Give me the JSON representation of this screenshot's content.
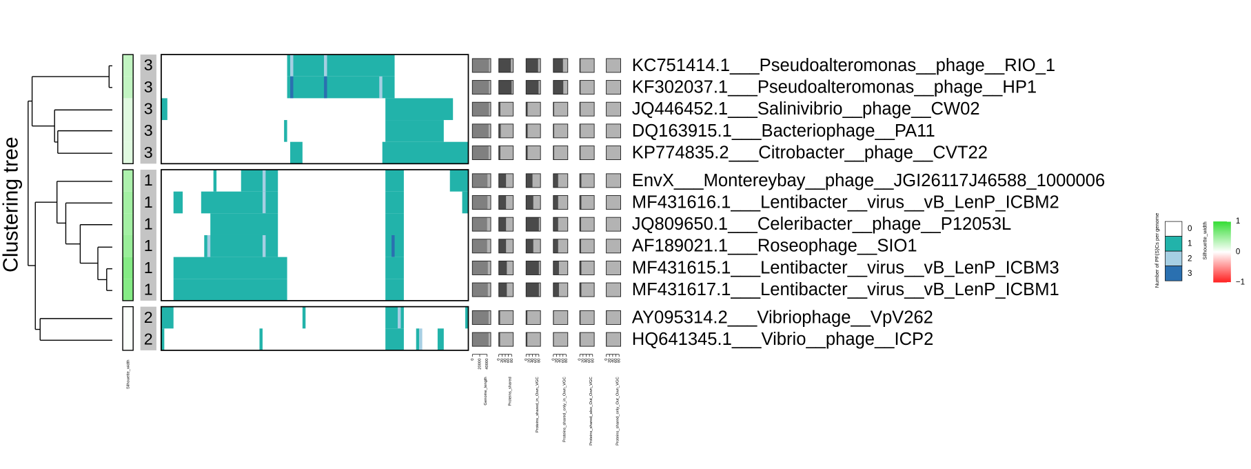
{
  "chart_data": {
    "type": "heatmap",
    "y_title": "Clustering tree",
    "rows": [
      "KC751414.1___Pseudoalteromonas__phage__RIO_1",
      "KF302037.1___Pseudoalteromonas__phage__HP1",
      "JQ446452.1___Salinivibrio__phage__CW02",
      "DQ163915.1___Bacteriophage__PA11",
      "KP774835.2___Citrobacter__phage__CVT22",
      "EnvX___Montereybay__phage__JGI26117J46588_1000006",
      "MF431616.1___Lentibacter__virus__vB_LenP_ICBM2",
      "JQ809650.1___Celeribacter__phage__P12053L",
      "AF189021.1___Roseophage__SIO1",
      "MF431615.1___Lentibacter__virus__vB_LenP_ICBM3",
      "MF431617.1___Lentibacter__virus__vB_LenP_ICBM1",
      "AY095314.2___Vibriophage__VpV262",
      "HQ641345.1___Vibrio__phage__ICP2"
    ],
    "clusters": [
      3,
      3,
      3,
      3,
      3,
      1,
      1,
      1,
      1,
      1,
      1,
      2,
      2
    ],
    "silhouette": [
      0.3,
      0.3,
      0.15,
      0.15,
      0.15,
      0.4,
      0.45,
      0.45,
      0.5,
      0.6,
      0.6,
      0.02,
      0.02
    ],
    "silhouette_legend": {
      "title": "Silhouette_width",
      "ylim": [
        -1,
        1
      ],
      "ticks": [
        1,
        0,
        {
          "value": -1,
          "label": "−1"
        }
      ]
    },
    "heatmap": {
      "xlim": [
        0,
        100
      ],
      "colors": [
        "#ffffff",
        "#22b3aa",
        "#a6cfe3",
        "#2a70b0"
      ],
      "legend_title": "Number of PF(S)Cs per genome",
      "legend_labels": [
        0,
        1,
        2,
        3
      ],
      "runs": [
        [
          [
            41,
            76,
            1
          ],
          [
            42,
            43,
            2
          ],
          [
            53,
            54,
            2
          ]
        ],
        [
          [
            41,
            76,
            1
          ],
          [
            42,
            43,
            3
          ],
          [
            53,
            54,
            3
          ],
          [
            71,
            72,
            2
          ]
        ],
        [
          [
            0,
            2,
            1
          ],
          [
            73,
            95,
            1
          ]
        ],
        [
          [
            40,
            41,
            1
          ],
          [
            73,
            92,
            1
          ]
        ],
        [
          [
            42,
            46,
            1
          ],
          [
            72,
            100,
            1
          ]
        ],
        [
          [
            17,
            18,
            1
          ],
          [
            26,
            38,
            1
          ],
          [
            33,
            34,
            2
          ],
          [
            73,
            79,
            1
          ],
          [
            94,
            100,
            1
          ]
        ],
        [
          [
            4,
            7,
            1
          ],
          [
            13,
            38,
            1
          ],
          [
            33,
            34,
            2
          ],
          [
            73,
            79,
            1
          ],
          [
            98,
            100,
            1
          ]
        ],
        [
          [
            16,
            38,
            1
          ],
          [
            73,
            79,
            1
          ]
        ],
        [
          [
            14,
            38,
            1
          ],
          [
            15,
            16,
            2
          ],
          [
            33,
            34,
            2
          ],
          [
            73,
            79,
            1
          ],
          [
            75,
            76,
            3
          ]
        ],
        [
          [
            4,
            41,
            1
          ],
          [
            73,
            79,
            1
          ]
        ],
        [
          [
            4,
            41,
            1
          ],
          [
            73,
            79,
            1
          ]
        ],
        [
          [
            0,
            4,
            1
          ],
          [
            46,
            47,
            1
          ],
          [
            73,
            79,
            1
          ],
          [
            77,
            78,
            2
          ],
          [
            99,
            100,
            1
          ]
        ],
        [
          [
            0,
            1,
            1
          ],
          [
            32,
            33,
            1
          ],
          [
            73,
            79,
            1
          ],
          [
            83,
            84,
            1
          ],
          [
            84,
            85,
            2
          ],
          [
            90,
            92,
            1
          ]
        ]
      ]
    },
    "bars": [
      {
        "title": "Genome_length",
        "xlim": [
          0,
          50000
        ],
        "xticks": [
          0,
          20000,
          40000
        ],
        "color": "#808080",
        "values": [
          45000,
          45000,
          45000,
          44000,
          44000,
          41000,
          41000,
          40000,
          40000,
          42000,
          42000,
          44000,
          44000
        ]
      },
      {
        "title": "Proteins_shared",
        "xlim": [
          0,
          90
        ],
        "xticks": [
          0,
          20,
          40,
          60,
          80
        ],
        "color": "#4a4a4a",
        "values": [
          75,
          80,
          10,
          12,
          10,
          45,
          45,
          45,
          45,
          50,
          50,
          8,
          8
        ]
      },
      {
        "title": "Proteins_shared_in_Own_VGC",
        "xlim": [
          0,
          90
        ],
        "xticks": [
          0,
          20,
          40,
          60,
          80
        ],
        "color": "#4a4a4a",
        "values": [
          75,
          78,
          10,
          10,
          10,
          40,
          45,
          80,
          45,
          80,
          80,
          8,
          8
        ]
      },
      {
        "title": "Proteins_shared_only_in_Own_VGC",
        "xlim": [
          0,
          90
        ],
        "xticks": [
          0,
          20,
          40,
          60,
          80
        ],
        "color": "#4a4a4a",
        "values": [
          60,
          62,
          5,
          5,
          5,
          30,
          30,
          30,
          30,
          35,
          35,
          3,
          3
        ]
      },
      {
        "title": "Proteins_shared_also_Out_Own_VGC",
        "xlim": [
          0,
          90
        ],
        "xticks": [
          0,
          20,
          40,
          60,
          80
        ],
        "color": "#4a4a4a",
        "values": [
          5,
          5,
          5,
          5,
          5,
          10,
          10,
          8,
          8,
          10,
          10,
          5,
          5
        ]
      },
      {
        "title": "Proteins_shared_only_Out_Own_VGC",
        "xlim": [
          0,
          90
        ],
        "xticks": [
          0,
          20,
          40,
          60,
          80
        ],
        "color": "#4a4a4a",
        "values": [
          0,
          0,
          0,
          0,
          0,
          0,
          0,
          0,
          0,
          0,
          0,
          3,
          3
        ]
      }
    ]
  }
}
